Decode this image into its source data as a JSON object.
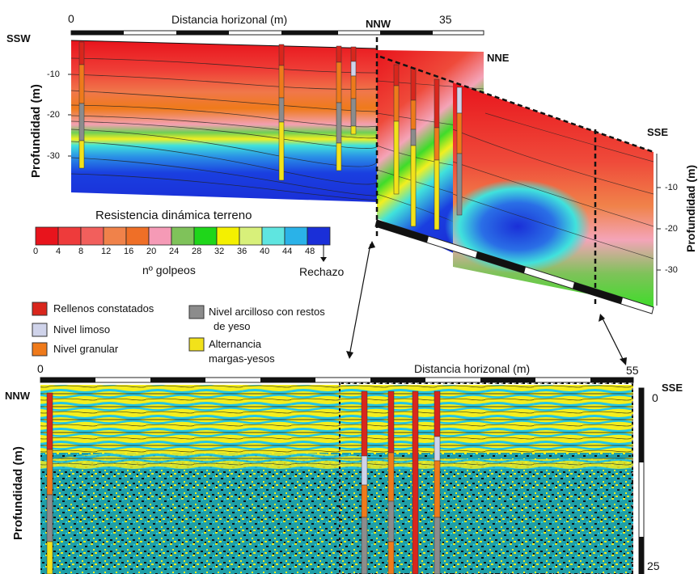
{
  "top_section": {
    "axis_start": "0",
    "axis_end": "35",
    "axis_title": "Distancia horizonal (m)",
    "orient_left": "SSW",
    "orient_corner": "NNW",
    "orient_mid": "NNE",
    "orient_right": "SSE",
    "ylabel_left": "Profundidad (m)",
    "ylabel_right": "Profundidad (m)",
    "depth_ticks_left": [
      "-10",
      "-20",
      "-30"
    ],
    "depth_ticks_right": [
      "-10",
      "-20",
      "-30"
    ]
  },
  "colorbar": {
    "title": "Resistencia dinámica terreno",
    "ticks": [
      "0",
      "4",
      "8",
      "12",
      "16",
      "20",
      "24",
      "28",
      "32",
      "36",
      "40",
      "44",
      "48"
    ],
    "colors": [
      "#e8141c",
      "#ee3b3b",
      "#f25f5c",
      "#f0824a",
      "#ef6f27",
      "#f59ab6",
      "#7fc25a",
      "#1fd61a",
      "#f4f000",
      "#d8f07a",
      "#5fe5e0",
      "#2ab2e8",
      "#1a2fd8"
    ],
    "unit_label": "nº golpeos",
    "max_label": "Rechazo"
  },
  "legend": [
    {
      "label": "Rellenos constatados",
      "color": "#d9261c"
    },
    {
      "label": "Nivel limoso",
      "color": "#cfd3ea"
    },
    {
      "label": "Nivel granular",
      "color": "#ef7a1a"
    },
    {
      "label": "Nivel arcilloso con restos",
      "label2": "de yeso",
      "color": "#8c8c8c"
    },
    {
      "label": "Alternancia",
      "label2": "margas-yesos",
      "color": "#f2e21a"
    }
  ],
  "bottom_section": {
    "axis_start": "0",
    "axis_end": "55",
    "axis_title": "Distancia horizonal (m)",
    "orient_left": "NNW",
    "orient_right": "SSE",
    "ylabel": "Profundidad (m)",
    "depth_top": "0",
    "depth_bottom": "25"
  }
}
